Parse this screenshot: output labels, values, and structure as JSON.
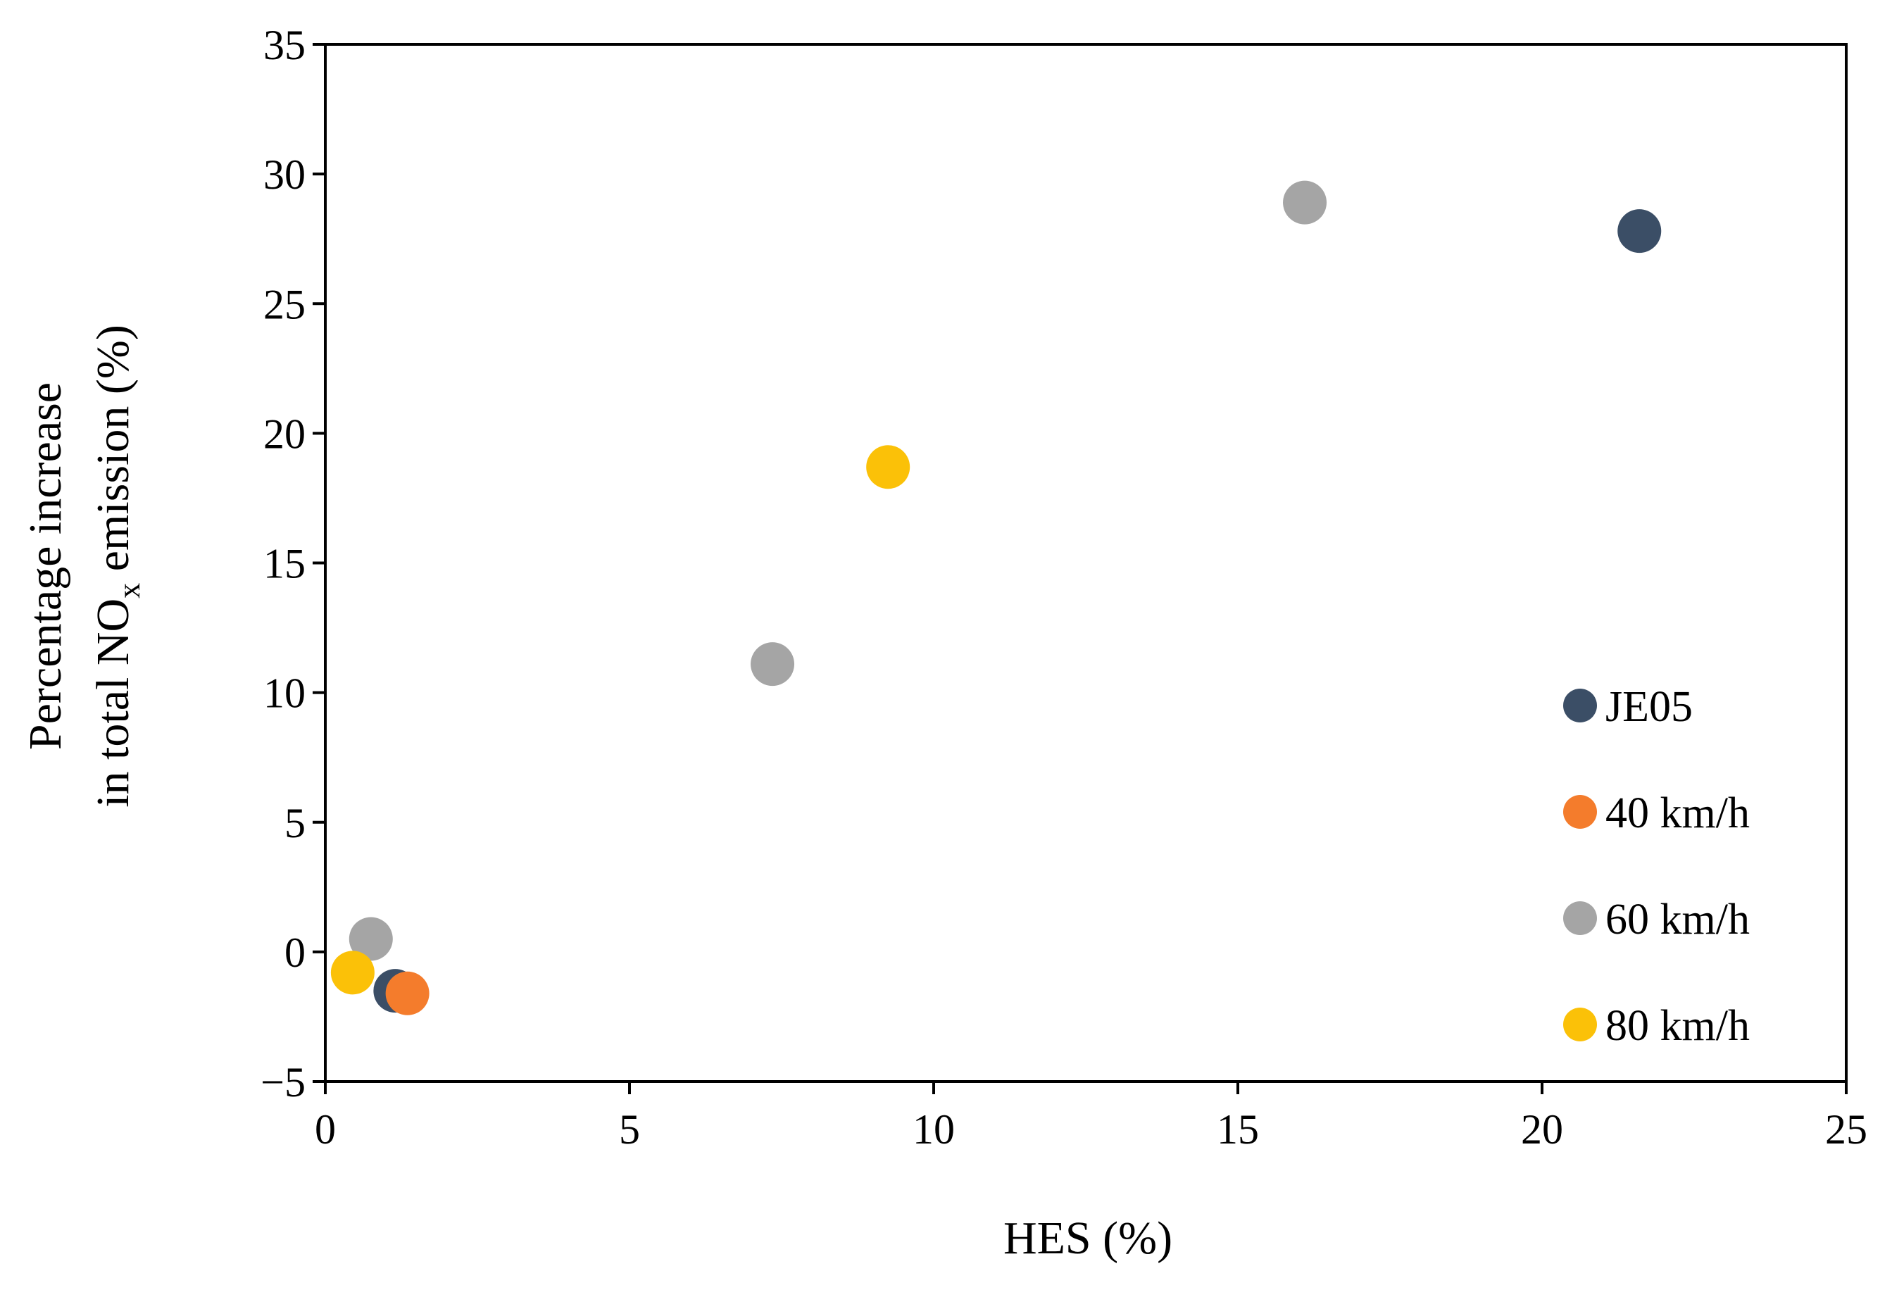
{
  "chart_data": {
    "type": "scatter",
    "xlabel": "HES (%)",
    "ylabel": {
      "line1": "Percentage increase",
      "line2_prefix": "in total NO",
      "line2_subscript": "x",
      "line2_suffix": " emission (%)"
    },
    "xlim": [
      0,
      25
    ],
    "ylim": [
      -5,
      35
    ],
    "x_ticks": [
      0,
      5,
      10,
      15,
      20,
      25
    ],
    "y_ticks": [
      -5,
      0,
      5,
      10,
      15,
      20,
      25,
      30,
      35
    ],
    "x_tick_labels": [
      "0",
      "5",
      "10",
      "15",
      "20",
      "25"
    ],
    "y_tick_labels": [
      "−5",
      "0",
      "5",
      "10",
      "15",
      "20",
      "25",
      "30",
      "35"
    ],
    "grid": false,
    "legend_position": "right",
    "series": [
      {
        "name": "JE05",
        "color": "#3b4e66",
        "points": [
          [
            1.15,
            -1.5
          ],
          [
            21.6,
            27.8
          ]
        ]
      },
      {
        "name": "40 km/h",
        "color": "#f47c2c",
        "points": [
          [
            1.35,
            -1.6
          ]
        ]
      },
      {
        "name": "60 km/h",
        "color": "#a5a5a5",
        "points": [
          [
            0.75,
            0.5
          ],
          [
            7.35,
            11.1
          ],
          [
            16.1,
            28.9
          ]
        ]
      },
      {
        "name": "80 km/h",
        "color": "#fbc108",
        "points": [
          [
            0.45,
            -0.8
          ],
          [
            9.25,
            18.7
          ]
        ]
      }
    ]
  }
}
